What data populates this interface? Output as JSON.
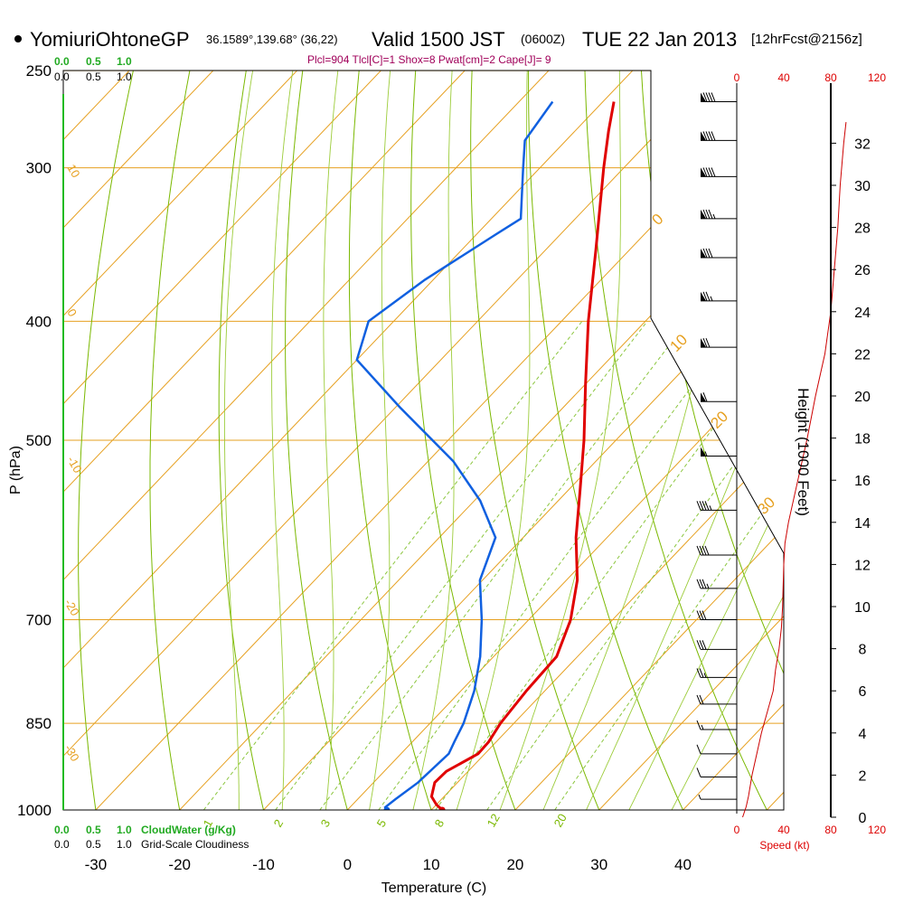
{
  "header": {
    "station": "YomiuriOhtoneGP",
    "coords": "36.1589°,139.68° (36,22)",
    "valid_prefix": "Valid 1500 JST",
    "valid_utc": "(0600Z)",
    "valid_date": "TUE 22 Jan 2013",
    "forecast": "[12hrFcst@2156z]"
  },
  "params_line": "Plcl=904 Tlcl[C]=1 Shox=8 Pwat[cm]=2 Cape[J]= 9",
  "top_scale": {
    "green": [
      "0.0",
      "0.5",
      "1.0"
    ],
    "black": [
      "0.0",
      "0.5",
      "1.0"
    ]
  },
  "bottom_scale": {
    "green": [
      "0.0",
      "0.5",
      "1.0"
    ],
    "green_label": "CloudWater (g/Kg)",
    "black": [
      "0.0",
      "0.5",
      "1.0"
    ],
    "black_label": "Grid-Scale Cloudiness"
  },
  "speed_scale": {
    "top": [
      "0",
      "40",
      "80",
      "120"
    ],
    "bottom": [
      "0",
      "40",
      "80",
      "120"
    ],
    "label": "Speed (kt)"
  },
  "colors": {
    "isotherm": "#e6a020",
    "dry_adiabat": "#7ab800",
    "mixing_ratio": "#8cc63f",
    "temperature": "#e00000",
    "dewpoint": "#1060e0",
    "wind_speed": "#cc0000",
    "cloudwater": "#22aa22"
  },
  "chart_data": {
    "type": "skew-t",
    "ylabel": "P (hPa)",
    "xlabel": "Temperature (C)",
    "height_label": "Height (1000 Feet)",
    "pressure_ticks": [
      250,
      300,
      400,
      500,
      700,
      850,
      1000
    ],
    "temperature_ticks": [
      -30,
      -20,
      -10,
      0,
      10,
      20,
      30,
      40
    ],
    "height_ticks": [
      0,
      2,
      4,
      6,
      8,
      10,
      12,
      14,
      16,
      18,
      20,
      22,
      24,
      26,
      28,
      30,
      32
    ],
    "isotherm_labels": [
      "10",
      "0",
      "-10",
      "-20",
      "-30",
      "0",
      "10",
      "20",
      "30"
    ],
    "mixing_ratio_labels": [
      "1",
      "2",
      "3",
      "5",
      "8",
      "12",
      "20"
    ],
    "temperature_profile": [
      {
        "p": 1000,
        "t": 11.3
      },
      {
        "p": 990,
        "t": 10.0
      },
      {
        "p": 975,
        "t": 8.5
      },
      {
        "p": 950,
        "t": 7.3
      },
      {
        "p": 930,
        "t": 7.4
      },
      {
        "p": 900,
        "t": 9.2
      },
      {
        "p": 880,
        "t": 9.1
      },
      {
        "p": 850,
        "t": 8.4
      },
      {
        "p": 800,
        "t": 7.8
      },
      {
        "p": 750,
        "t": 7.5
      },
      {
        "p": 700,
        "t": 5.0
      },
      {
        "p": 650,
        "t": 1.3
      },
      {
        "p": 600,
        "t": -3.7
      },
      {
        "p": 550,
        "t": -8.5
      },
      {
        "p": 500,
        "t": -13.8
      },
      {
        "p": 450,
        "t": -20.0
      },
      {
        "p": 400,
        "t": -26.8
      },
      {
        "p": 350,
        "t": -34.0
      },
      {
        "p": 300,
        "t": -42.4
      },
      {
        "p": 280,
        "t": -46.0
      },
      {
        "p": 265,
        "t": -48.7
      }
    ],
    "dewpoint_profile": [
      {
        "p": 1000,
        "td": 4.7
      },
      {
        "p": 995,
        "td": 4.2
      },
      {
        "p": 980,
        "td": 4.5
      },
      {
        "p": 950,
        "td": 5.3
      },
      {
        "p": 900,
        "td": 5.7
      },
      {
        "p": 880,
        "td": 5.0
      },
      {
        "p": 850,
        "td": 4.0
      },
      {
        "p": 800,
        "td": 1.6
      },
      {
        "p": 750,
        "td": -1.6
      },
      {
        "p": 700,
        "td": -5.6
      },
      {
        "p": 650,
        "td": -10.3
      },
      {
        "p": 600,
        "td": -13.3
      },
      {
        "p": 560,
        "td": -19.3
      },
      {
        "p": 520,
        "td": -27.0
      },
      {
        "p": 470,
        "td": -39.5
      },
      {
        "p": 430,
        "td": -50.0
      },
      {
        "p": 400,
        "td": -53.0
      },
      {
        "p": 370,
        "td": -51.0
      },
      {
        "p": 340,
        "td": -47.7
      },
      {
        "p": 330,
        "td": -46.5
      },
      {
        "p": 300,
        "td": -52.0
      },
      {
        "p": 285,
        "td": -54.9
      },
      {
        "p": 265,
        "td": -56.0
      }
    ],
    "surface_point": {
      "p": 1000,
      "t": 11.3,
      "td": 4.7
    },
    "wind_speed_profile": [
      {
        "h": 0,
        "s": 5
      },
      {
        "h": 0.5,
        "s": 8
      },
      {
        "h": 1,
        "s": 10
      },
      {
        "h": 2,
        "s": 13
      },
      {
        "h": 3,
        "s": 17
      },
      {
        "h": 4,
        "s": 21
      },
      {
        "h": 5,
        "s": 26
      },
      {
        "h": 6,
        "s": 31
      },
      {
        "h": 7,
        "s": 33
      },
      {
        "h": 8,
        "s": 36
      },
      {
        "h": 9,
        "s": 38
      },
      {
        "h": 10,
        "s": 39
      },
      {
        "h": 12,
        "s": 40
      },
      {
        "h": 13,
        "s": 41
      },
      {
        "h": 14,
        "s": 44
      },
      {
        "h": 16,
        "s": 52
      },
      {
        "h": 18,
        "s": 60
      },
      {
        "h": 20,
        "s": 67
      },
      {
        "h": 22,
        "s": 75
      },
      {
        "h": 24,
        "s": 80
      },
      {
        "h": 26,
        "s": 83
      },
      {
        "h": 28,
        "s": 86
      },
      {
        "h": 30,
        "s": 88
      },
      {
        "h": 32,
        "s": 91
      },
      {
        "h": 33,
        "s": 93
      }
    ],
    "wind_barbs": [
      {
        "p": 265,
        "speed": 90
      },
      {
        "p": 285,
        "speed": 90
      },
      {
        "p": 305,
        "speed": 90
      },
      {
        "p": 330,
        "speed": 85
      },
      {
        "p": 355,
        "speed": 80
      },
      {
        "p": 385,
        "speed": 75
      },
      {
        "p": 420,
        "speed": 70
      },
      {
        "p": 465,
        "speed": 60
      },
      {
        "p": 515,
        "speed": 55
      },
      {
        "p": 570,
        "speed": 45
      },
      {
        "p": 620,
        "speed": 40
      },
      {
        "p": 660,
        "speed": 35
      },
      {
        "p": 700,
        "speed": 30
      },
      {
        "p": 740,
        "speed": 30
      },
      {
        "p": 780,
        "speed": 25
      },
      {
        "p": 820,
        "speed": 20
      },
      {
        "p": 860,
        "speed": 15
      },
      {
        "p": 900,
        "speed": 10
      },
      {
        "p": 940,
        "speed": 10
      },
      {
        "p": 980,
        "speed": 5
      }
    ]
  }
}
